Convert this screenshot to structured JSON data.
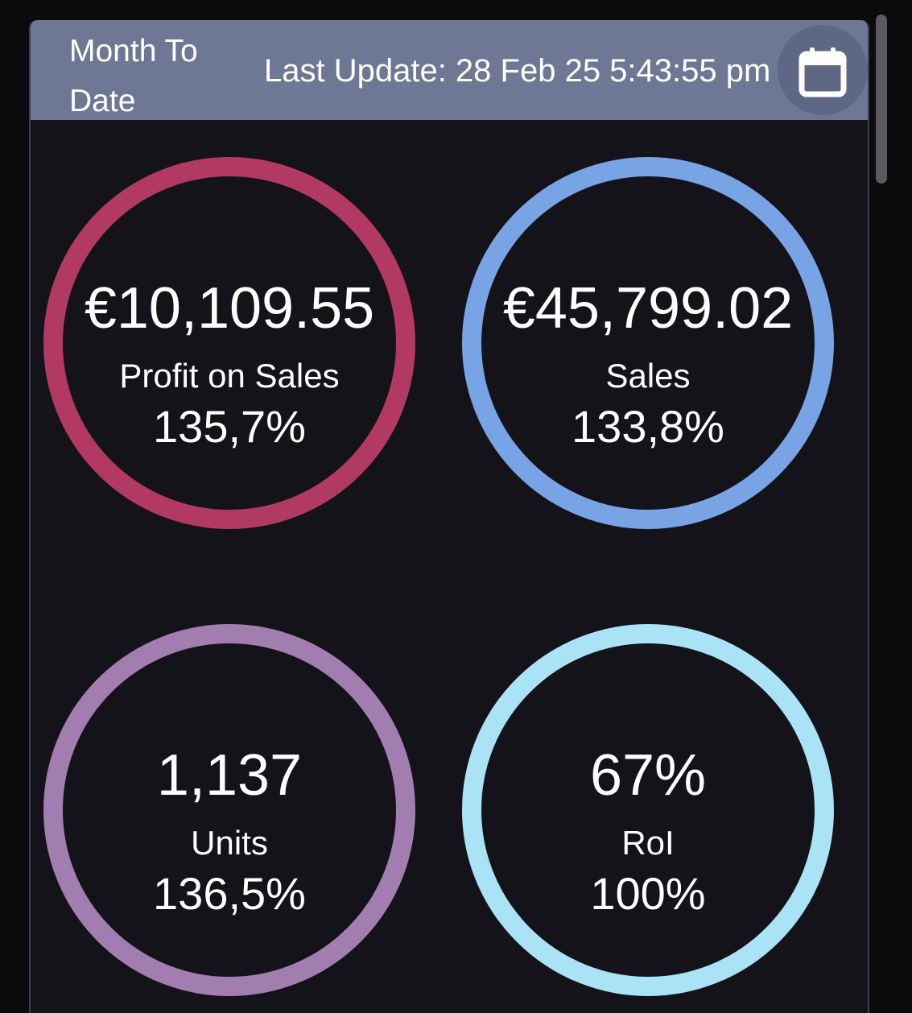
{
  "header": {
    "period_label": "Month To Date",
    "last_update": "Last Update: 28 Feb 25 5:43:55 pm",
    "calendar_icon": "calendar-icon"
  },
  "metrics": [
    {
      "value": "€10,109.55",
      "label": "Profit on Sales",
      "percent": "135,7%",
      "color": "#b23a62"
    },
    {
      "value": "€45,799.02",
      "label": "Sales",
      "percent": "133,8%",
      "color": "#78a4e6"
    },
    {
      "value": "1,137",
      "label": "Units",
      "percent": "136,5%",
      "color": "#a27db0"
    },
    {
      "value": "67%",
      "label": "RoI",
      "percent": "100%",
      "color": "#a9e3f5"
    }
  ],
  "colors": {
    "header_bg": "#6e7895",
    "card_bg": "#141319",
    "page_bg": "#0b0b0d"
  }
}
